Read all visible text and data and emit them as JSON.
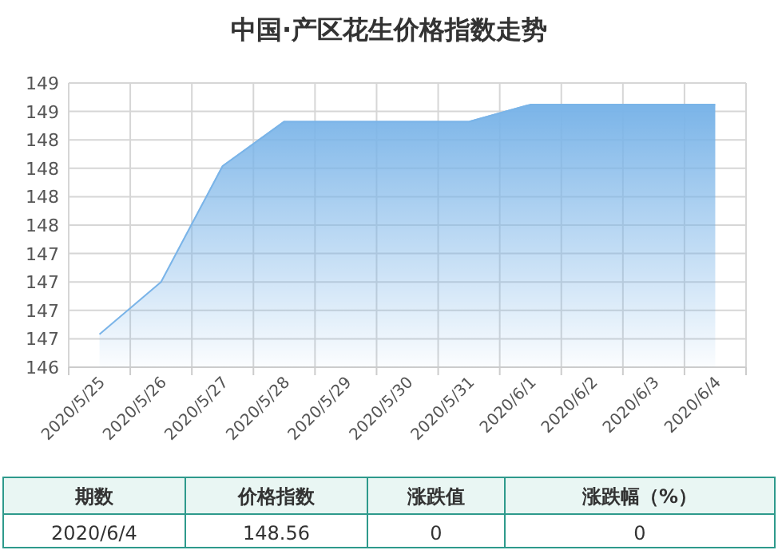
{
  "chart_data": {
    "type": "area",
    "title": "中国·产区花生价格指数走势",
    "categories": [
      "2020/5/25",
      "2020/5/26",
      "2020/5/27",
      "2020/5/28",
      "2020/5/29",
      "2020/5/30",
      "2020/5/31",
      "2020/6/1",
      "2020/6/2",
      "2020/6/3",
      "2020/6/4"
    ],
    "series": [
      {
        "color": "#7ab4e8",
        "values": [
          146.54,
          147.0,
          148.02,
          148.41,
          148.41,
          148.41,
          148.41,
          148.56,
          148.56,
          148.56,
          148.56
        ]
      }
    ],
    "ylim": [
      146.25,
      148.75
    ],
    "yticks": [
      {
        "value": 146.25,
        "label": "146"
      },
      {
        "value": 146.5,
        "label": "147"
      },
      {
        "value": 146.75,
        "label": "147"
      },
      {
        "value": 147.0,
        "label": "147"
      },
      {
        "value": 147.25,
        "label": "147"
      },
      {
        "value": 147.5,
        "label": "148"
      },
      {
        "value": 147.75,
        "label": "148"
      },
      {
        "value": 148.0,
        "label": "148"
      },
      {
        "value": 148.25,
        "label": "148"
      },
      {
        "value": 148.5,
        "label": "149"
      },
      {
        "value": 148.75,
        "label": "149"
      }
    ],
    "grid": true,
    "annotations": [
      "期数",
      "价格指数",
      "涨跌值",
      "涨跌幅（%）",
      "2020/6/4",
      "148.56",
      "0",
      "0"
    ]
  }
}
